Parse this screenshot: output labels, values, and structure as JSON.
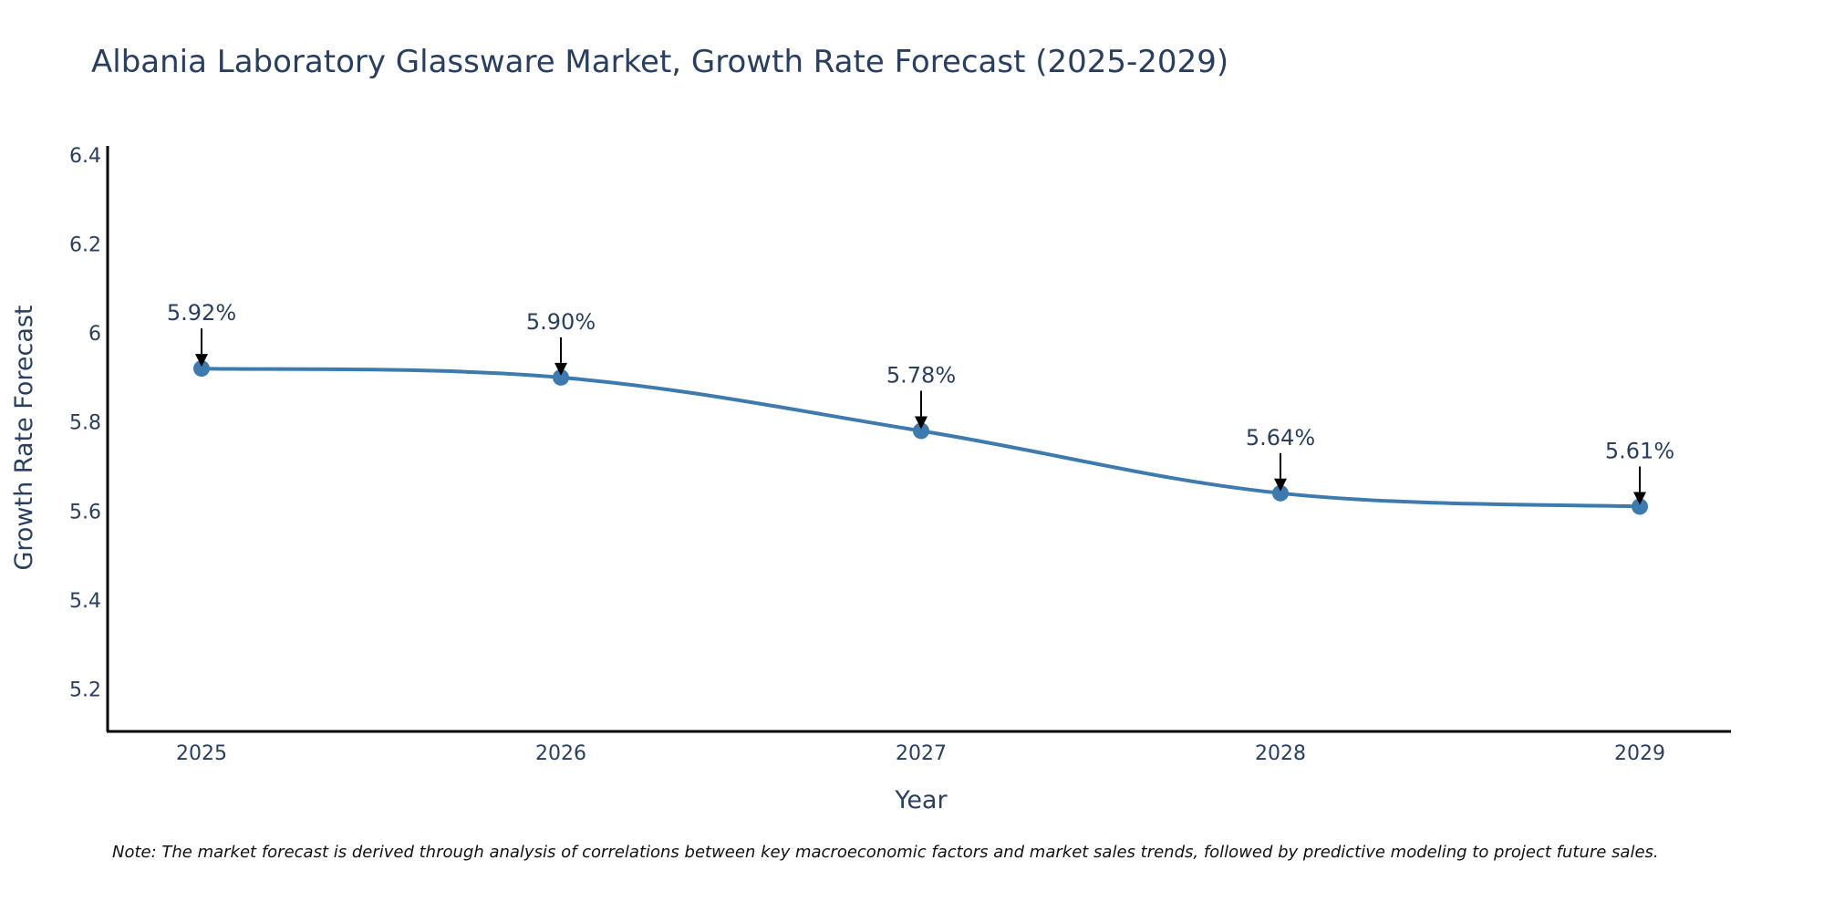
{
  "chart_data": {
    "type": "line",
    "title": "Albania Laboratory Glassware Market, Growth Rate Forecast (2025-2029)",
    "xlabel": "Year",
    "ylabel": "Growth Rate Forecast",
    "categories": [
      "2025",
      "2026",
      "2027",
      "2028",
      "2029"
    ],
    "series": [
      {
        "name": "Growth Rate Forecast",
        "values": [
          5.92,
          5.9,
          5.78,
          5.64,
          5.61
        ],
        "data_labels": [
          "5.92%",
          "5.90%",
          "5.78%",
          "5.64%",
          "5.61%"
        ],
        "color": "#3d7aae"
      }
    ],
    "ylim": [
      5.105,
      6.42
    ],
    "yticks": [
      5.2,
      5.4,
      5.6,
      5.8,
      6,
      6.2,
      6.4
    ],
    "ytick_labels": [
      "5.2",
      "5.4",
      "5.6",
      "5.8",
      "6",
      "6.2",
      "6.4"
    ],
    "grid": false,
    "legend": "none",
    "note": "Note: The market forecast is derived through analysis of correlations between key macroeconomic factors and market sales trends, followed by predictive modeling to project future sales."
  },
  "colors": {
    "text": "#2a3f5f",
    "axis": "#000000",
    "background": "#ffffff"
  }
}
